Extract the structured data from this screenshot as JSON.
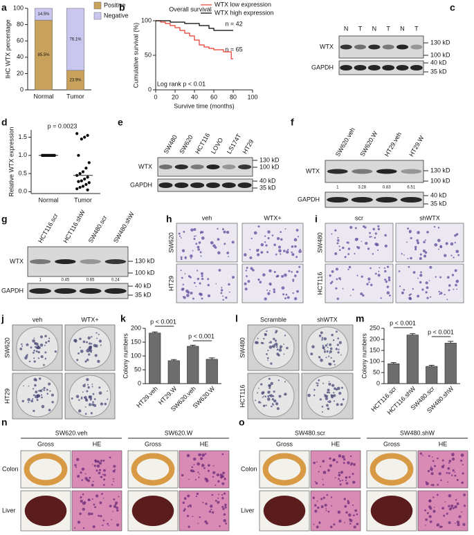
{
  "panels": [
    "a",
    "b",
    "c",
    "d",
    "e",
    "f",
    "g",
    "h",
    "i",
    "j",
    "k",
    "l",
    "m",
    "n",
    "o"
  ],
  "chart_data": [
    {
      "type": "bar",
      "stacked": true,
      "ylabel": "IHC WTX percentage",
      "categories": [
        "Normal",
        "Tumor"
      ],
      "series": [
        {
          "name": "Positive",
          "color": "#c9a25e",
          "values": [
            85.5,
            23.9
          ],
          "value_labels": [
            "85.5%",
            "23.9%"
          ]
        },
        {
          "name": "Negative",
          "color": "#c9c6ef",
          "values": [
            14.5,
            76.1
          ],
          "value_labels": [
            "14.5%",
            "76.1%"
          ]
        }
      ],
      "ylim": [
        0,
        100
      ],
      "yticks": [
        0,
        20,
        40,
        60,
        80,
        100
      ],
      "legend": "right"
    },
    {
      "type": "line",
      "step": true,
      "title": "Overall survival",
      "xlabel": "Survive time (months)",
      "ylabel": "Cumulative survival (%)",
      "xlim": [
        0,
        100
      ],
      "xticks": [
        0,
        20,
        40,
        60,
        80,
        100
      ],
      "ylim": [
        0,
        100
      ],
      "yticks": [
        0,
        50,
        100
      ],
      "series": [
        {
          "name": "WTX low expression",
          "color": "#e8382a",
          "x": [
            0,
            5,
            10,
            15,
            20,
            25,
            30,
            35,
            40,
            45,
            50,
            55,
            60,
            70,
            78,
            80
          ],
          "values": [
            100,
            98,
            96,
            93,
            90,
            86,
            82,
            78,
            72,
            65,
            62,
            60,
            58,
            55,
            45,
            45
          ]
        },
        {
          "name": "WTX high expression",
          "color": "#000000",
          "x": [
            0,
            15,
            30,
            45,
            55,
            60,
            70,
            80
          ],
          "values": [
            100,
            98,
            96,
            93,
            89,
            86,
            86,
            86
          ]
        }
      ],
      "annotations": [
        "n = 42",
        "n = 65",
        "Log rank p < 0.01"
      ],
      "legend": "upper right"
    },
    {
      "type": "scatter",
      "ylabel": "Relative WTX expression",
      "categories": [
        "Normal",
        "Tumor"
      ],
      "series": [
        {
          "color": "#000000",
          "values": [
            1,
            1,
            1,
            1,
            1,
            1,
            1,
            1,
            1,
            1,
            1,
            1,
            1,
            1,
            1,
            1,
            1,
            1,
            1,
            1
          ]
        },
        {
          "color": "#000000",
          "values": [
            1.6,
            1.55,
            1.5,
            1.45,
            1.0,
            0.8,
            0.65,
            0.55,
            0.5,
            0.45,
            0.4,
            0.35,
            0.3,
            0.28,
            0.25,
            0.2,
            0.15,
            0.12,
            0.08,
            0.05
          ]
        }
      ],
      "means": [
        1,
        0.45
      ],
      "ylim": [
        -0.05,
        1.7
      ],
      "yticks": [
        {
          "value": 0,
          "label": "0.0"
        },
        {
          "value": 0.5,
          "label": "0.5"
        },
        {
          "value": 1,
          "label": "1.0"
        },
        {
          "value": 1.5,
          "label": "1.5"
        }
      ],
      "annotations": [
        "p = 0.0023"
      ]
    },
    {
      "type": "bar",
      "ylabel": "Colony numbers",
      "categories": [
        "HT29.veh",
        "HT29.W",
        "SW620.veh",
        "SW620.W"
      ],
      "values": [
        183,
        83,
        135,
        88
      ],
      "errors": [
        4,
        4,
        4,
        5
      ],
      "color": "#6d6d6d",
      "ylim": [
        0,
        200
      ],
      "yticks": [
        0,
        50,
        100,
        150,
        200
      ],
      "annotations": [
        "p < 0.001",
        "p < 0.001"
      ]
    },
    {
      "type": "bar",
      "ylabel": "Colony numbers",
      "categories": [
        "HCT116.scr",
        "HCT116.shW",
        "SW480.scr",
        "SW480.shW"
      ],
      "values": [
        90,
        220,
        78,
        183
      ],
      "errors": [
        5,
        6,
        5,
        8
      ],
      "color": "#6d6d6d",
      "ylim": [
        0,
        250
      ],
      "yticks": [
        0,
        50,
        100,
        150,
        200,
        250
      ],
      "annotations": [
        "p < 0.001",
        "p < 0.001"
      ]
    }
  ],
  "blots": [
    {
      "lanes": [
        "N",
        "T",
        "N",
        "T",
        "N",
        "T"
      ],
      "proteins": [
        "WTX",
        "GAPDH"
      ],
      "markers": [
        "130 kD",
        "100 kD",
        "40 kD",
        "35 kD"
      ]
    },
    {
      "lanes": [
        "SW480",
        "SW620",
        "HCT116",
        "LOVO",
        "LS174T",
        "HT29"
      ],
      "proteins": [
        "WTX",
        "GAPDH"
      ],
      "markers": [
        "130 kD",
        "100 kD",
        "40 kD",
        "35 kD"
      ]
    },
    {
      "lanes": [
        "SW620.veh",
        "SW620.W",
        "HT29.veh",
        "HT29.W"
      ],
      "proteins": [
        "WTX",
        "GAPDH"
      ],
      "markers": [
        "130 kD",
        "100 kD",
        "40 kD",
        "35 kD"
      ],
      "quantification": [
        1,
        3.28,
        0.83,
        6.51
      ]
    },
    {
      "lanes": [
        "HCT116.scr",
        "HCT116.shW",
        "SW480.scr",
        "SW480.shW"
      ],
      "proteins": [
        "WTX",
        "GAPDH"
      ],
      "markers": [
        "130 kD",
        "100 kD",
        "40 kD",
        "35 kD"
      ],
      "quantification": [
        1,
        0.45,
        0.65,
        0.24
      ]
    }
  ],
  "images": [
    {
      "columns": [
        "veh",
        "WTX+"
      ],
      "rows": [
        "SW620",
        "HT29"
      ]
    },
    {
      "columns": [
        "scr",
        "shWTX"
      ],
      "rows": [
        "SW480",
        "HCT116"
      ]
    },
    {
      "columns": [
        "veh",
        "WTX+"
      ],
      "rows": [
        "SW620",
        "HT29"
      ]
    },
    {
      "columns": [
        "Scramble",
        "shWTX"
      ],
      "rows": [
        "SW480",
        "HCT116"
      ]
    }
  ],
  "xenografts": [
    {
      "groups": [
        "SW620.veh",
        "SW620.W"
      ],
      "columns": [
        "Gross",
        "HE"
      ],
      "rows": [
        "Colon",
        "Liver"
      ]
    },
    {
      "groups": [
        "SW480.scr",
        "SW480.shW"
      ],
      "columns": [
        "Gross",
        "HE"
      ],
      "rows": [
        "Colon",
        "Liver"
      ]
    }
  ]
}
